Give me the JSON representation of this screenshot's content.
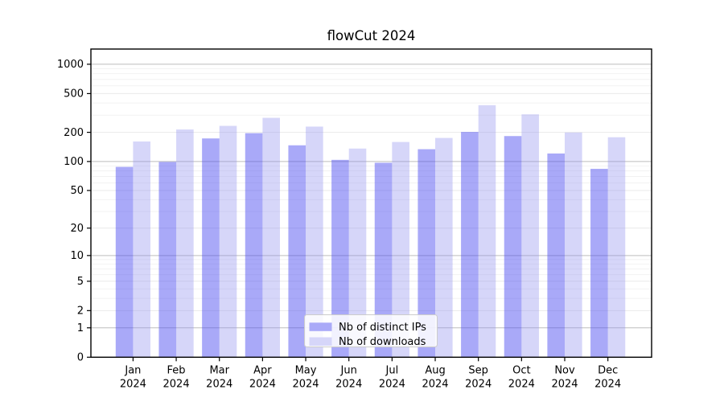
{
  "title": "flowCut 2024",
  "chart_data": {
    "type": "bar",
    "title": "flowCut 2024",
    "categories": [
      "Jan",
      "Feb",
      "Mar",
      "Apr",
      "May",
      "Jun",
      "Jul",
      "Aug",
      "Sep",
      "Oct",
      "Nov",
      "Dec"
    ],
    "year_label": "2024",
    "series": [
      {
        "name": "Nb of distinct IPs",
        "values": [
          88,
          99,
          173,
          196,
          147,
          104,
          97,
          134,
          202,
          183,
          121,
          84
        ]
      },
      {
        "name": "Nb of downloads",
        "values": [
          161,
          214,
          233,
          282,
          229,
          136,
          159,
          175,
          380,
          306,
          199,
          178
        ]
      }
    ],
    "yscale": "log10(1+y)",
    "yticks": [
      0,
      1,
      2,
      5,
      10,
      20,
      50,
      100,
      200,
      500,
      1000
    ],
    "ylim": [
      0,
      1430
    ],
    "grid": true,
    "legend_position": "bottom-center-inside"
  },
  "colors": {
    "bar_ips": "rgba(78,78,240,0.485)",
    "bar_downloads": "rgba(140,140,238,0.36)",
    "legend_swatch_ips": "#aaaaf8",
    "legend_swatch_downloads": "#d6d6f9",
    "grid_decade": "#bdbdbd",
    "grid_tick": "#e9e9e9",
    "grid_minor": "#f2f2f2",
    "axis": "#000000",
    "background": "#ffffff"
  }
}
